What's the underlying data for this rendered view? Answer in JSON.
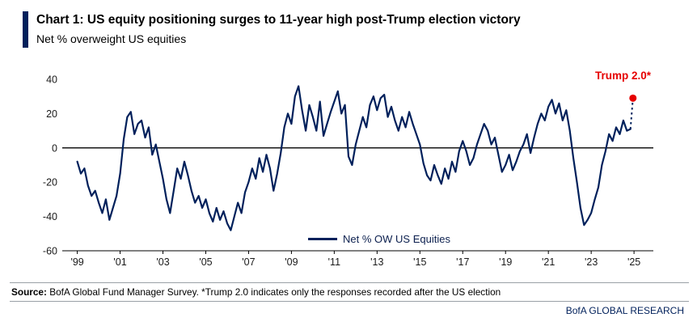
{
  "header": {
    "title": "Chart 1: US equity positioning surges to 11-year high post-Trump election victory",
    "subtitle": "Net % overweight US equities"
  },
  "colors": {
    "navy": "#00205b",
    "red": "#e60000",
    "axis": "#000000"
  },
  "chart_data": {
    "type": "line",
    "title": "Chart 1: US equity positioning surges to 11-year high post-Trump election victory",
    "ylabel": "Net % overweight US equities",
    "ylim": [
      -60,
      40
    ],
    "xlim": [
      1998.6,
      2025.6
    ],
    "y_ticks": [
      40,
      20,
      0,
      -20,
      -40,
      -60
    ],
    "x_ticks": [
      {
        "year": 1999,
        "label": "'99"
      },
      {
        "year": 2001,
        "label": "'01"
      },
      {
        "year": 2003,
        "label": "'03"
      },
      {
        "year": 2005,
        "label": "'05"
      },
      {
        "year": 2007,
        "label": "'07"
      },
      {
        "year": 2009,
        "label": "'09"
      },
      {
        "year": 2011,
        "label": "'11"
      },
      {
        "year": 2013,
        "label": "'13"
      },
      {
        "year": 2015,
        "label": "'15"
      },
      {
        "year": 2017,
        "label": "'17"
      },
      {
        "year": 2019,
        "label": "'19"
      },
      {
        "year": 2021,
        "label": "'21"
      },
      {
        "year": 2023,
        "label": "'23"
      },
      {
        "year": 2025,
        "label": "'25"
      }
    ],
    "zero_line": true,
    "grid": false,
    "legend_position": "bottom-center",
    "x_start": 1999.0,
    "x_step_years": 0.1666667,
    "series": [
      {
        "name": "Net % OW US Equities",
        "color": "#00205b",
        "values": [
          -8,
          -15,
          -12,
          -22,
          -28,
          -25,
          -32,
          -38,
          -30,
          -42,
          -35,
          -28,
          -15,
          5,
          18,
          21,
          8,
          14,
          16,
          6,
          12,
          -4,
          2,
          -8,
          -18,
          -30,
          -38,
          -25,
          -12,
          -18,
          -8,
          -16,
          -25,
          -32,
          -28,
          -35,
          -30,
          -38,
          -43,
          -35,
          -42,
          -37,
          -44,
          -48,
          -40,
          -32,
          -38,
          -26,
          -20,
          -12,
          -18,
          -6,
          -14,
          -4,
          -12,
          -25,
          -15,
          -3,
          12,
          20,
          14,
          30,
          36,
          22,
          10,
          25,
          18,
          10,
          27,
          7,
          14,
          21,
          27,
          33,
          20,
          25,
          -5,
          -10,
          2,
          10,
          18,
          12,
          25,
          30,
          22,
          29,
          31,
          18,
          24,
          16,
          10,
          18,
          12,
          21,
          14,
          8,
          2,
          -9,
          -16,
          -19,
          -10,
          -16,
          -21,
          -12,
          -18,
          -8,
          -14,
          -2,
          4,
          -2,
          -10,
          -6,
          2,
          8,
          14,
          10,
          2,
          6,
          -4,
          -14,
          -10,
          -4,
          -13,
          -8,
          -2,
          2,
          8,
          -3,
          6,
          14,
          20,
          16,
          24,
          28,
          20,
          26,
          16,
          22,
          10,
          -6,
          -20,
          -35,
          -45,
          -42,
          -38,
          -30,
          -23,
          -10,
          -2,
          8,
          4,
          12,
          8,
          16,
          10,
          11
        ]
      }
    ],
    "annotation": {
      "label": "Trump 2.0*",
      "x": 2024.95,
      "y": 29,
      "marker": "dot",
      "color": "#e60000",
      "connector": "dotted"
    }
  },
  "legend": {
    "label": "Net % OW US Equities"
  },
  "footer": {
    "source_label": "Source:",
    "source_text": " BofA Global Fund Manager Survey. *Trump 2.0 indicates only the responses recorded after the US election",
    "brand": "BofA GLOBAL RESEARCH"
  }
}
